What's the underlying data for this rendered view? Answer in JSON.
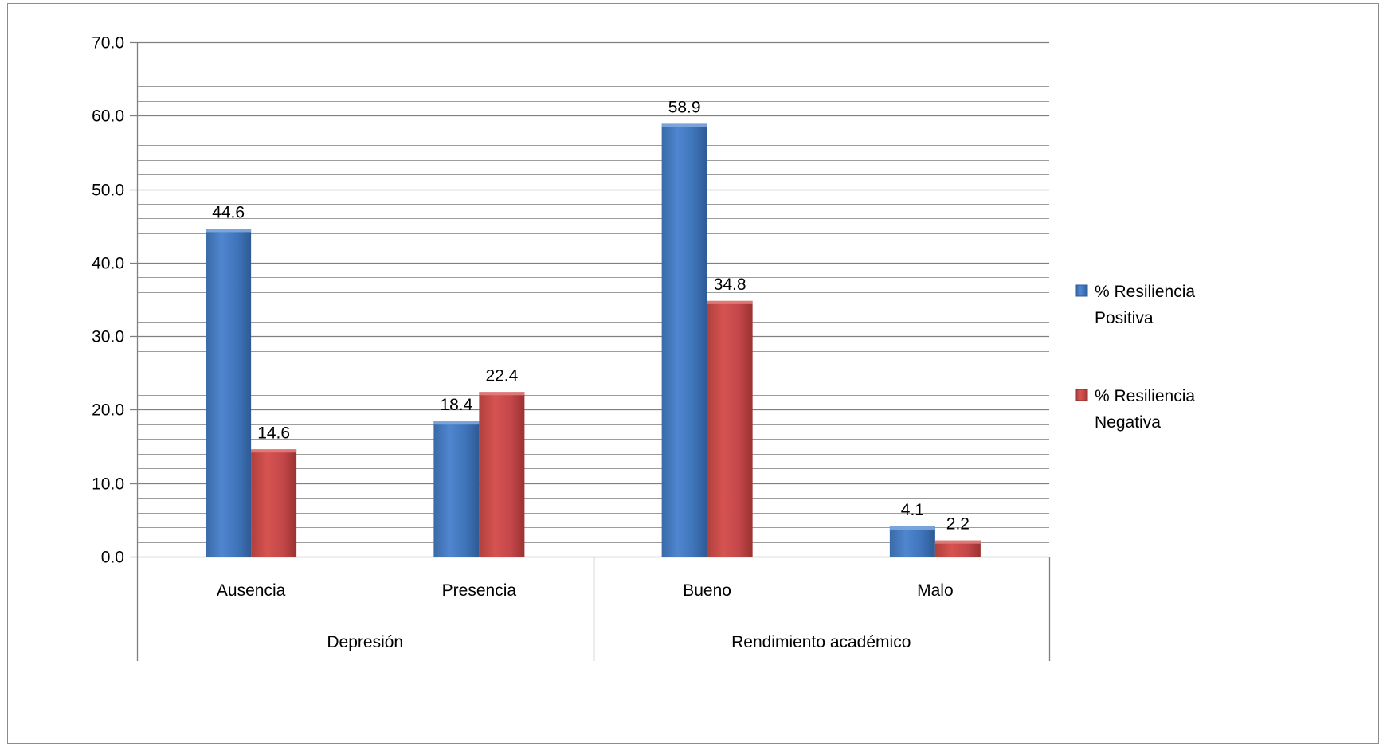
{
  "chart_data": {
    "type": "bar",
    "title": "",
    "xlabel": "",
    "ylabel": "",
    "ylim": [
      0,
      70
    ],
    "y_major_step": 10,
    "y_minor_step": 2,
    "y_tick_labels": [
      "0.0",
      "10.0",
      "20.0",
      "30.0",
      "40.0",
      "50.0",
      "60.0",
      "70.0"
    ],
    "grid": true,
    "legend_position": "right",
    "groups": [
      {
        "label": "Depresión",
        "categories": [
          "Ausencia",
          "Presencia"
        ]
      },
      {
        "label": "Rendimiento académico",
        "categories": [
          "Bueno",
          "Malo"
        ]
      }
    ],
    "categories": [
      "Ausencia",
      "Presencia",
      "Bueno",
      "Malo"
    ],
    "series": [
      {
        "name": "% Resiliencia Positiva",
        "name_lines": [
          "% Resiliencia",
          "Positiva"
        ],
        "color": "#4a7ebb",
        "values": [
          44.6,
          18.4,
          58.9,
          4.1
        ],
        "labels": [
          "44.6",
          "18.4",
          "58.9",
          "4.1"
        ]
      },
      {
        "name": "% Resiliencia Negativa",
        "name_lines": [
          "% Resiliencia",
          "Negativa"
        ],
        "color": "#c0504d",
        "values": [
          14.6,
          22.4,
          34.8,
          2.2
        ],
        "labels": [
          "14.6",
          "22.4",
          "34.8",
          "2.2"
        ]
      }
    ]
  }
}
